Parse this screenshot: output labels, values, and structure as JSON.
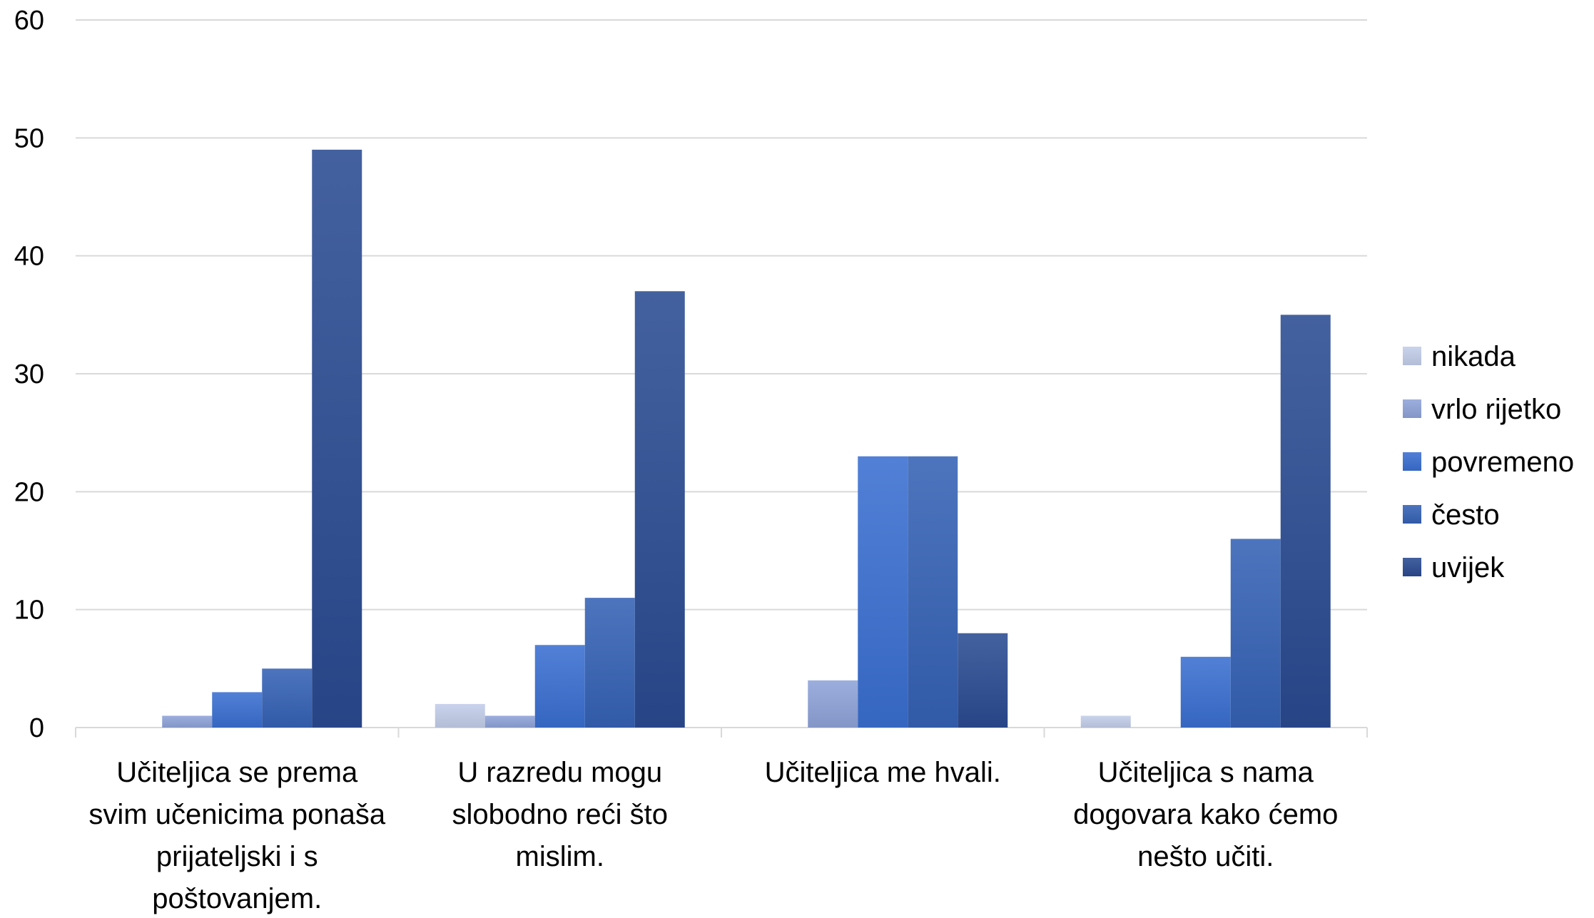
{
  "chart_data": {
    "type": "bar",
    "categories": [
      [
        "Učiteljica se prema",
        "svim učenicima ponaša",
        "prijateljski i s",
        "poštovanjem."
      ],
      [
        "U razredu mogu",
        "slobodno reći što",
        "mislim."
      ],
      [
        "Učiteljica me hvali."
      ],
      [
        "Učiteljica s nama",
        "dogovara kako ćemo",
        "nešto učiti."
      ]
    ],
    "series": [
      {
        "name": "nikada",
        "values": [
          0,
          2,
          0,
          1
        ],
        "color": "#c3cde9"
      },
      {
        "name": "vrlo rijetko",
        "values": [
          1,
          1,
          4,
          0
        ],
        "color": "#8ea3d8"
      },
      {
        "name": "povremeno",
        "values": [
          3,
          7,
          23,
          6
        ],
        "color": "#3a6fd1"
      },
      {
        "name": "često",
        "values": [
          5,
          11,
          23,
          16
        ],
        "color": "#3562b5"
      },
      {
        "name": "uvijek",
        "values": [
          49,
          37,
          8,
          35
        ],
        "color": "#2a4b92"
      }
    ],
    "yticks": [
      0,
      10,
      20,
      30,
      40,
      50,
      60
    ],
    "ylim": [
      0,
      60
    ],
    "title": "",
    "xlabel": "",
    "ylabel": "",
    "grid": true,
    "legend": "right"
  }
}
